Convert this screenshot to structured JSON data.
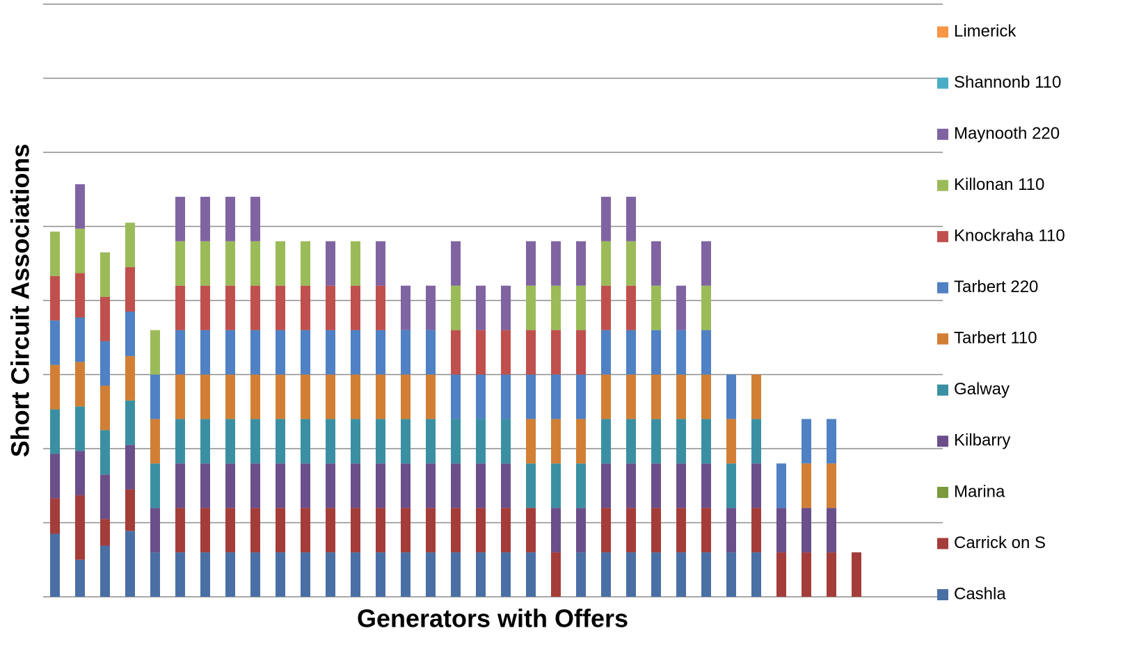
{
  "chart_data": {
    "type": "stacked_bar",
    "x_label": "Generators with Offers",
    "y_label": "Short Circuit Associations",
    "categories": [
      null,
      null,
      null,
      null,
      null,
      null,
      null,
      null,
      null,
      null,
      null,
      null,
      null,
      null,
      null,
      null,
      null,
      null,
      null,
      null,
      null,
      null,
      null,
      null,
      null,
      null,
      null,
      null,
      null,
      null,
      null,
      null,
      null
    ],
    "ylim": [
      0,
      8
    ],
    "yticks": [
      0,
      1,
      2,
      3,
      4,
      5,
      6,
      7,
      8
    ],
    "grid": true,
    "legend": "right",
    "series": [
      {
        "name": "Cashla",
        "color": "#4a6fa5",
        "values": [
          0.85,
          0.5,
          0.69,
          0.89,
          0.6,
          0.6,
          0.6,
          0.6,
          0.6,
          0.6,
          0.6,
          0.6,
          0.6,
          0.6,
          0.6,
          0.6,
          0.6,
          0.6,
          0.6,
          0.6,
          0,
          0.6,
          0.6,
          0.6,
          0.6,
          0.6,
          0.6,
          0.6,
          0.6,
          0,
          0,
          0,
          0
        ]
      },
      {
        "name": "Carrick on S",
        "color": "#a43d3a",
        "values": [
          0.48,
          0.87,
          0.36,
          0.56,
          0,
          0.6,
          0.6,
          0.6,
          0.6,
          0.6,
          0.6,
          0.6,
          0.6,
          0.6,
          0.6,
          0.6,
          0.6,
          0.6,
          0.6,
          0.6,
          0.6,
          0,
          0.6,
          0.6,
          0.6,
          0.6,
          0.6,
          0,
          0.6,
          0.6,
          0.6,
          0.6,
          0.6
        ]
      },
      {
        "name": "Marina",
        "color": "#7a9a3b",
        "values": [
          0,
          0,
          0,
          0,
          0,
          0,
          0,
          0,
          0,
          0,
          0,
          0,
          0,
          0,
          0,
          0,
          0,
          0,
          0,
          0,
          0,
          0,
          0,
          0,
          0,
          0,
          0,
          0,
          0,
          0,
          0,
          0,
          0
        ]
      },
      {
        "name": "Kilbarry",
        "color": "#6b4f8a",
        "values": [
          0.6,
          0.6,
          0.6,
          0.6,
          0.6,
          0.6,
          0.6,
          0.6,
          0.6,
          0.6,
          0.6,
          0.6,
          0.6,
          0.6,
          0.6,
          0.6,
          0.6,
          0.6,
          0.6,
          0,
          0.6,
          0.6,
          0.6,
          0.6,
          0.6,
          0.6,
          0.6,
          0.6,
          0.6,
          0.6,
          0.6,
          0.6,
          0
        ]
      },
      {
        "name": "Galway",
        "color": "#3a90a2",
        "values": [
          0.6,
          0.6,
          0.6,
          0.6,
          0.6,
          0.6,
          0.6,
          0.6,
          0.6,
          0.6,
          0.6,
          0.6,
          0.6,
          0.6,
          0.6,
          0.6,
          0.6,
          0.6,
          0.6,
          0.6,
          0.6,
          0.6,
          0.6,
          0.6,
          0.6,
          0.6,
          0.6,
          0.6,
          0.6,
          0,
          0,
          0,
          0
        ]
      },
      {
        "name": "Tarbert 110",
        "color": "#d27f35",
        "values": [
          0.6,
          0.6,
          0.6,
          0.6,
          0.6,
          0.6,
          0.6,
          0.6,
          0.6,
          0.6,
          0.6,
          0.6,
          0.6,
          0.6,
          0.6,
          0.6,
          0,
          0,
          0,
          0.6,
          0.6,
          0.6,
          0.6,
          0.6,
          0.6,
          0.6,
          0.6,
          0.6,
          0.6,
          0,
          0.6,
          0.6,
          0
        ]
      },
      {
        "name": "Tarbert 220",
        "color": "#4f81c4",
        "values": [
          0.6,
          0.6,
          0.6,
          0.6,
          0.6,
          0.6,
          0.6,
          0.6,
          0.6,
          0.6,
          0.6,
          0.6,
          0.6,
          0.6,
          0.6,
          0.6,
          0.6,
          0.6,
          0.6,
          0.6,
          0.6,
          0.6,
          0.6,
          0.6,
          0.6,
          0.6,
          0.6,
          0.6,
          0,
          0.6,
          0.6,
          0.6,
          0
        ]
      },
      {
        "name": "Knockraha 110",
        "color": "#c0504d",
        "values": [
          0.6,
          0.6,
          0.6,
          0.6,
          0,
          0.6,
          0.6,
          0.6,
          0.6,
          0.6,
          0.6,
          0.6,
          0.6,
          0.6,
          0,
          0,
          0.6,
          0.6,
          0.6,
          0.6,
          0.6,
          0.6,
          0.6,
          0.6,
          0,
          0,
          0,
          0,
          0,
          0,
          0,
          0,
          0
        ]
      },
      {
        "name": "Killonan 110",
        "color": "#9bbb59",
        "values": [
          0.6,
          0.6,
          0.6,
          0.6,
          0.6,
          0.6,
          0.6,
          0.6,
          0.6,
          0.6,
          0.6,
          0,
          0.6,
          0,
          0,
          0,
          0.6,
          0,
          0,
          0.6,
          0.6,
          0.6,
          0.6,
          0.6,
          0.6,
          0,
          0.6,
          0,
          0,
          0,
          0,
          0,
          0
        ]
      },
      {
        "name": "Maynooth 220",
        "color": "#8064a2",
        "values": [
          0,
          0.6,
          0,
          0,
          0,
          0.6,
          0.6,
          0.6,
          0.6,
          0,
          0,
          0.6,
          0,
          0.6,
          0.6,
          0.6,
          0.6,
          0.6,
          0.6,
          0.6,
          0.6,
          0.6,
          0.6,
          0.6,
          0.6,
          0.6,
          0.6,
          0,
          0,
          0,
          0,
          0,
          0
        ]
      },
      {
        "name": "Shannonb 110",
        "color": "#4bacc6",
        "values": [
          0,
          0,
          0,
          0,
          0,
          0,
          0,
          0,
          0,
          0,
          0,
          0,
          0,
          0,
          0,
          0,
          0,
          0,
          0,
          0,
          0,
          0,
          0,
          0,
          0,
          0,
          0,
          0,
          0,
          0,
          0,
          0,
          0
        ]
      },
      {
        "name": "Limerick",
        "color": "#f79646",
        "values": [
          0,
          0,
          0,
          0,
          0,
          0,
          0,
          0,
          0,
          0,
          0,
          0,
          0,
          0,
          0,
          0,
          0,
          0,
          0,
          0,
          0,
          0,
          0,
          0,
          0,
          0,
          0,
          0,
          0,
          0,
          0,
          0,
          0
        ]
      }
    ]
  }
}
